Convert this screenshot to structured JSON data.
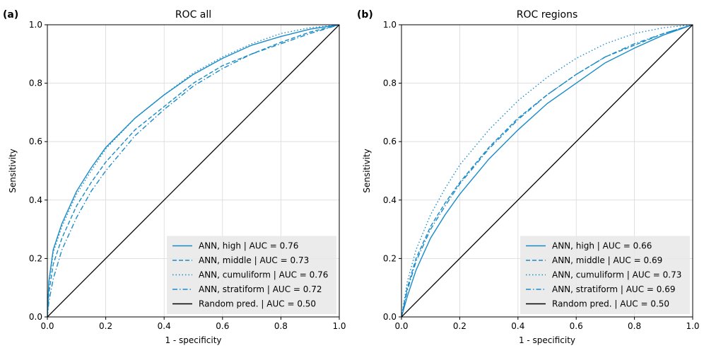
{
  "chart_data": [
    {
      "type": "line",
      "panel_label": "(a)",
      "title": "ROC all",
      "xlabel": "1 - specificity",
      "ylabel": "Sensitivity",
      "xlim": [
        0,
        1
      ],
      "ylim": [
        0,
        1
      ],
      "xticks": [
        "0.0",
        "0.2",
        "0.4",
        "0.6",
        "0.8",
        "1.0"
      ],
      "yticks": [
        "0.0",
        "0.2",
        "0.4",
        "0.6",
        "0.8",
        "1.0"
      ],
      "grid": true,
      "legend_position": "lower-right",
      "series": [
        {
          "name": "ANN, high | AUC = 0.76",
          "color": "#1a8bc9",
          "dash": "solid",
          "x": [
            0,
            0.005,
            0.02,
            0.05,
            0.1,
            0.15,
            0.2,
            0.3,
            0.4,
            0.5,
            0.6,
            0.7,
            0.8,
            0.9,
            1.0
          ],
          "y": [
            0,
            0.12,
            0.23,
            0.32,
            0.43,
            0.51,
            0.58,
            0.68,
            0.76,
            0.83,
            0.885,
            0.93,
            0.96,
            0.985,
            1.0
          ]
        },
        {
          "name": "ANN, middle | AUC = 0.73",
          "color": "#1a8bc9",
          "dash": "dashed",
          "x": [
            0,
            0.005,
            0.02,
            0.05,
            0.1,
            0.15,
            0.2,
            0.3,
            0.4,
            0.5,
            0.6,
            0.7,
            0.8,
            0.9,
            1.0
          ],
          "y": [
            0,
            0.08,
            0.18,
            0.27,
            0.38,
            0.46,
            0.53,
            0.64,
            0.72,
            0.8,
            0.86,
            0.9,
            0.94,
            0.975,
            1.0
          ]
        },
        {
          "name": "ANN, cumuliform | AUC = 0.76",
          "color": "#1a8bc9",
          "dash": "dotted",
          "x": [
            0,
            0.005,
            0.02,
            0.05,
            0.1,
            0.15,
            0.2,
            0.3,
            0.4,
            0.5,
            0.6,
            0.7,
            0.8,
            0.9,
            1.0
          ],
          "y": [
            0,
            0.11,
            0.22,
            0.31,
            0.42,
            0.5,
            0.575,
            0.68,
            0.76,
            0.835,
            0.89,
            0.935,
            0.97,
            0.99,
            1.0
          ]
        },
        {
          "name": "ANN, stratiform | AUC = 0.72",
          "color": "#1a8bc9",
          "dash": "dashdot",
          "x": [
            0,
            0.005,
            0.02,
            0.05,
            0.1,
            0.15,
            0.2,
            0.3,
            0.4,
            0.5,
            0.6,
            0.7,
            0.8,
            0.9,
            1.0
          ],
          "y": [
            0,
            0.05,
            0.13,
            0.23,
            0.34,
            0.43,
            0.5,
            0.62,
            0.71,
            0.79,
            0.85,
            0.9,
            0.935,
            0.97,
            1.0
          ]
        },
        {
          "name": "Random pred. | AUC = 0.50",
          "color": "#000000",
          "dash": "solid",
          "x": [
            0,
            1
          ],
          "y": [
            0,
            1
          ]
        }
      ]
    },
    {
      "type": "line",
      "panel_label": "(b)",
      "title": "ROC regions",
      "xlabel": "1 - specificity",
      "ylabel": "Sensitivity",
      "xlim": [
        0,
        1
      ],
      "ylim": [
        0,
        1
      ],
      "xticks": [
        "0.0",
        "0.2",
        "0.4",
        "0.6",
        "0.8",
        "1.0"
      ],
      "yticks": [
        "0.0",
        "0.2",
        "0.4",
        "0.6",
        "0.8",
        "1.0"
      ],
      "grid": true,
      "legend_position": "lower-right",
      "series": [
        {
          "name": "ANN, high | AUC = 0.66",
          "color": "#1a8bc9",
          "dash": "solid",
          "x": [
            0,
            0.02,
            0.05,
            0.1,
            0.15,
            0.2,
            0.3,
            0.4,
            0.5,
            0.6,
            0.7,
            0.8,
            0.9,
            1.0
          ],
          "y": [
            0,
            0.07,
            0.16,
            0.27,
            0.35,
            0.42,
            0.54,
            0.64,
            0.73,
            0.8,
            0.87,
            0.92,
            0.965,
            1.0
          ]
        },
        {
          "name": "ANN, middle | AUC = 0.69",
          "color": "#1a8bc9",
          "dash": "dashed",
          "x": [
            0,
            0.02,
            0.05,
            0.1,
            0.15,
            0.2,
            0.3,
            0.4,
            0.5,
            0.6,
            0.7,
            0.8,
            0.9,
            1.0
          ],
          "y": [
            0,
            0.1,
            0.2,
            0.31,
            0.39,
            0.46,
            0.58,
            0.68,
            0.76,
            0.83,
            0.89,
            0.93,
            0.97,
            1.0
          ]
        },
        {
          "name": "ANN, cumuliform | AUC = 0.73",
          "color": "#1a8bc9",
          "dash": "dotted",
          "x": [
            0,
            0.02,
            0.05,
            0.1,
            0.15,
            0.2,
            0.3,
            0.4,
            0.5,
            0.6,
            0.7,
            0.8,
            0.9,
            1.0
          ],
          "y": [
            0,
            0.12,
            0.23,
            0.35,
            0.44,
            0.52,
            0.64,
            0.74,
            0.82,
            0.885,
            0.935,
            0.97,
            0.99,
            1.0
          ]
        },
        {
          "name": "ANN, stratiform | AUC = 0.69",
          "color": "#1a8bc9",
          "dash": "dashdot",
          "x": [
            0,
            0.02,
            0.05,
            0.1,
            0.15,
            0.2,
            0.3,
            0.4,
            0.5,
            0.6,
            0.7,
            0.8,
            0.9,
            1.0
          ],
          "y": [
            0,
            0.09,
            0.19,
            0.3,
            0.38,
            0.455,
            0.575,
            0.675,
            0.76,
            0.83,
            0.89,
            0.935,
            0.97,
            1.0
          ]
        },
        {
          "name": "Random pred. | AUC = 0.50",
          "color": "#000000",
          "dash": "solid",
          "x": [
            0,
            1
          ],
          "y": [
            0,
            1
          ]
        }
      ]
    }
  ]
}
